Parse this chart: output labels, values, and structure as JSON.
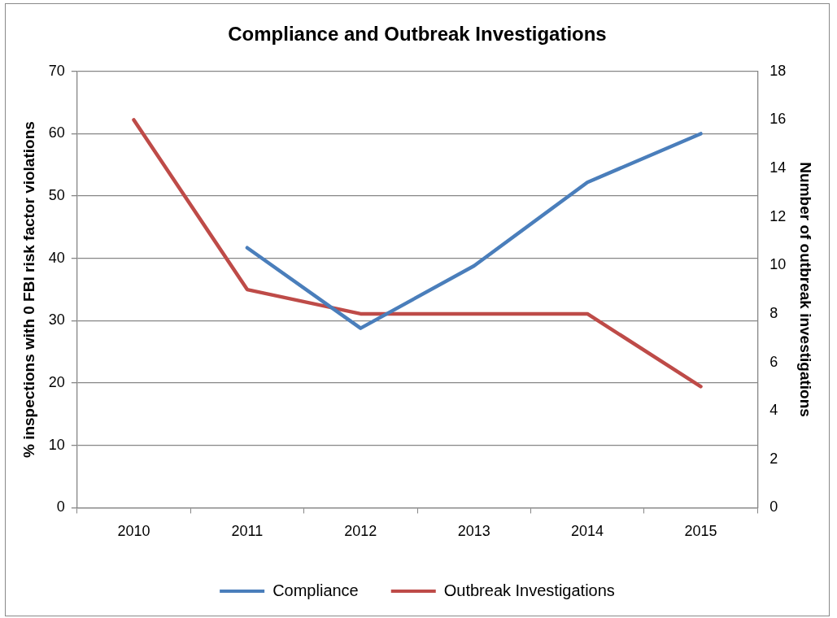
{
  "chart_data": {
    "type": "line",
    "title": "Compliance and Outbreak Investigations",
    "ylabel": "% inspections with 0 FBI risk factor violations",
    "y2label": "Number of outbreak investigations",
    "categories": [
      "2010",
      "2011",
      "2012",
      "2013",
      "2014",
      "2015"
    ],
    "series": [
      {
        "name": "Compliance",
        "color": "#4a7ebb",
        "values": [
          null,
          41.7,
          28.8,
          38.8,
          52.2,
          60.0
        ]
      },
      {
        "name": "Outbreak Investigations",
        "color": "#be4b48",
        "axis": "y2",
        "values": [
          16,
          9,
          8,
          8,
          8,
          5
        ]
      }
    ],
    "ylim": [
      0,
      70
    ],
    "yticks": [
      0,
      10,
      20,
      30,
      40,
      50,
      60,
      70
    ],
    "y2lim": [
      0,
      18
    ],
    "y2ticks": [
      0,
      2,
      4,
      6,
      8,
      10,
      12,
      14,
      16,
      18
    ],
    "grid": "y",
    "legend": "bottom",
    "marker": "none",
    "line_style": "solid"
  }
}
